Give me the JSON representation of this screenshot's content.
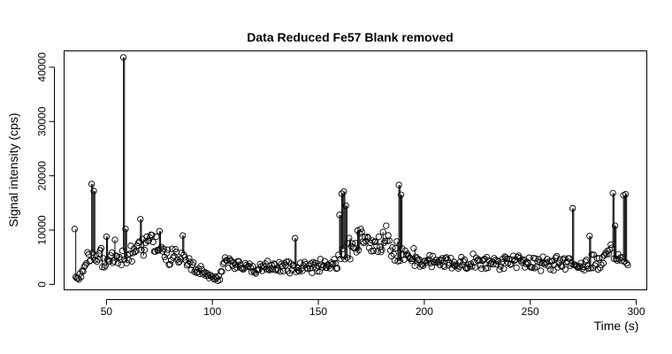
{
  "chart_data": {
    "type": "scatter",
    "title": "Data Reduced Fe57 Blank removed",
    "xlabel": "Time (s)",
    "ylabel": "Signal intensity (cps)",
    "xlim": [
      30,
      305
    ],
    "ylim": [
      -1000,
      43000
    ],
    "xticks": [
      50,
      100,
      150,
      200,
      250,
      300
    ],
    "xtick_labels": [
      "50",
      "100",
      "150",
      "200",
      "250",
      "300"
    ],
    "yticks": [
      0,
      10000,
      20000,
      30000,
      40000
    ],
    "ytick_labels": [
      "0",
      "10000",
      "20000",
      "30000",
      "40000"
    ],
    "grid": false,
    "legend": "none",
    "marker": "open-circle",
    "vertical_stems": true,
    "x_range": [
      35,
      296
    ],
    "x_step": 0.5,
    "baseline_profile": {
      "x": [
        35,
        38,
        40,
        45,
        50,
        55,
        60,
        65,
        70,
        73,
        75,
        80,
        85,
        90,
        95,
        100,
        103,
        106,
        110,
        120,
        130,
        140,
        150,
        158,
        162,
        165,
        170,
        175,
        180,
        185,
        190,
        195,
        200,
        210,
        220,
        230,
        240,
        250,
        260,
        270,
        280,
        285,
        290,
        296
      ],
      "y": [
        800,
        1500,
        4500,
        5500,
        4500,
        4500,
        5000,
        6500,
        8000,
        8500,
        6500,
        5000,
        4800,
        3500,
        2200,
        1500,
        1200,
        4000,
        3500,
        3000,
        3200,
        3000,
        3300,
        3500,
        6000,
        6500,
        9000,
        7000,
        7800,
        6500,
        5500,
        5000,
        4500,
        4000,
        4200,
        3800,
        4000,
        3800,
        3800,
        4000,
        4200,
        4500,
        6000,
        4000
      ]
    },
    "spikes": [
      {
        "x": 35,
        "y": 10200
      },
      {
        "x": 43,
        "y": 18500
      },
      {
        "x": 44,
        "y": 17200
      },
      {
        "x": 50,
        "y": 8800
      },
      {
        "x": 54,
        "y": 8200
      },
      {
        "x": 58,
        "y": 41800
      },
      {
        "x": 59,
        "y": 10200
      },
      {
        "x": 66,
        "y": 12000
      },
      {
        "x": 75,
        "y": 9800
      },
      {
        "x": 86,
        "y": 9000
      },
      {
        "x": 139,
        "y": 8500
      },
      {
        "x": 160,
        "y": 12800
      },
      {
        "x": 161,
        "y": 16700
      },
      {
        "x": 162,
        "y": 17100
      },
      {
        "x": 163,
        "y": 14500
      },
      {
        "x": 182,
        "y": 10800
      },
      {
        "x": 188,
        "y": 18300
      },
      {
        "x": 189,
        "y": 16500
      },
      {
        "x": 270,
        "y": 14000
      },
      {
        "x": 278,
        "y": 8900
      },
      {
        "x": 289,
        "y": 16800
      },
      {
        "x": 290,
        "y": 10800
      },
      {
        "x": 294,
        "y": 16400
      },
      {
        "x": 295,
        "y": 16600
      }
    ]
  }
}
